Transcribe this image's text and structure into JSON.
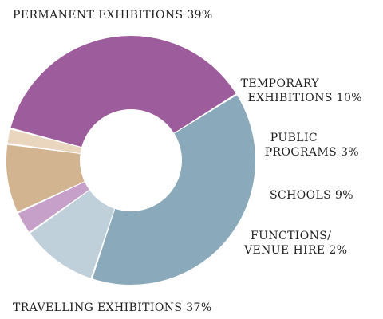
{
  "chart_data": {
    "type": "pie",
    "donut": true,
    "slices": [
      {
        "label_lines": [
          "PERMANENT EXHIBITIONS 39%"
        ],
        "value": 39,
        "color": "#8aaabb"
      },
      {
        "label_lines": [
          "TEMPORARY",
          "EXHIBITIONS 10%"
        ],
        "value": 10,
        "color": "#c0d0da"
      },
      {
        "label_lines": [
          "PUBLIC",
          "PROGRAMS 3%"
        ],
        "value": 3,
        "color": "#c6a0c8"
      },
      {
        "label_lines": [
          "SCHOOLS 9%"
        ],
        "value": 9,
        "color": "#d2b491"
      },
      {
        "label_lines": [
          "FUNCTIONS/",
          "VENUE HIRE 2%"
        ],
        "value": 2,
        "color": "#ead6bf"
      },
      {
        "label_lines": [
          "TRAVELLING EXHIBITIONS 37%"
        ],
        "value": 37,
        "color": "#9d5c9c"
      }
    ]
  }
}
